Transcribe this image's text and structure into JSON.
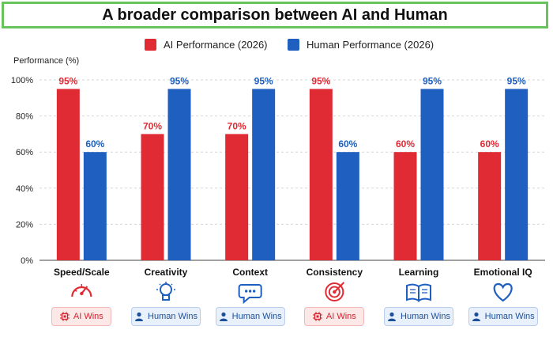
{
  "title": "A broader comparison between AI and Human",
  "colors": {
    "ai": "#e02b35",
    "human": "#1e5fc0",
    "title_border": "#67c35b"
  },
  "chart_data": {
    "type": "bar",
    "ylabel": "Performance (%)",
    "ylim": [
      0,
      100
    ],
    "yticks": [
      0,
      20,
      40,
      60,
      80,
      100
    ],
    "ytick_labels": [
      "0%",
      "20%",
      "40%",
      "60%",
      "80%",
      "100%"
    ],
    "grid": true,
    "legend_position": "top-center",
    "categories": [
      "Speed/Scale",
      "Creativity",
      "Context",
      "Consistency",
      "Learning",
      "Emotional IQ"
    ],
    "series": [
      {
        "name": "AI Performance (2026)",
        "values": [
          95,
          70,
          70,
          95,
          60,
          60
        ],
        "labels": [
          "95%",
          "70%",
          "70%",
          "95%",
          "60%",
          "60%"
        ]
      },
      {
        "name": "Human Performance (2026)",
        "values": [
          60,
          95,
          95,
          60,
          95,
          95
        ],
        "labels": [
          "60%",
          "95%",
          "95%",
          "60%",
          "95%",
          "95%"
        ]
      }
    ]
  },
  "category_icons": [
    "speedometer-icon",
    "lightbulb-icon",
    "speech-bubble-icon",
    "target-icon",
    "open-book-icon",
    "heart-icon"
  ],
  "badges": [
    {
      "type": "ai",
      "label": "AI Wins",
      "icon": "chip-icon"
    },
    {
      "type": "human",
      "label": "Human Wins",
      "icon": "person-icon"
    },
    {
      "type": "human",
      "label": "Human Wins",
      "icon": "person-icon"
    },
    {
      "type": "ai",
      "label": "AI Wins",
      "icon": "chip-icon"
    },
    {
      "type": "human",
      "label": "Human Wins",
      "icon": "person-icon"
    },
    {
      "type": "human",
      "label": "Human Wins",
      "icon": "person-icon"
    }
  ]
}
